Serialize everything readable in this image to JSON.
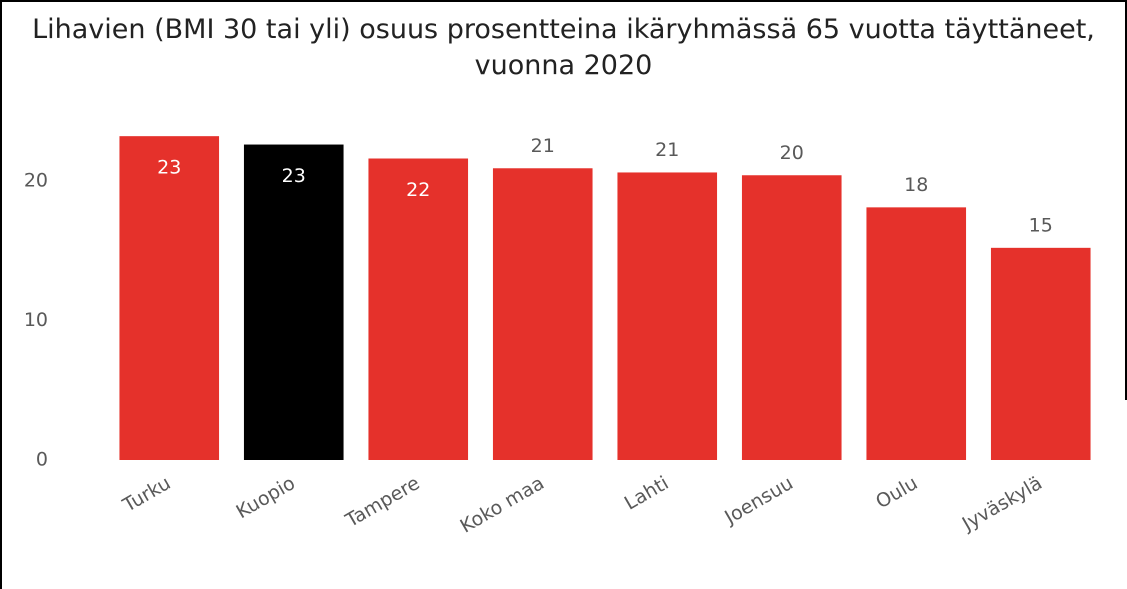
{
  "chart_data": {
    "type": "bar",
    "title": "Lihavien (BMI 30 tai yli) osuus prosentteina ikäryhmässä 65 vuotta täyttäneet, vuonna 2020",
    "categories": [
      "Turku",
      "Kuopio",
      "Tampere",
      "Koko maa",
      "Lahti",
      "Joensuu",
      "Oulu",
      "Jyväskylä"
    ],
    "values": [
      23.2,
      22.6,
      21.6,
      20.9,
      20.6,
      20.4,
      18.1,
      15.2
    ],
    "value_labels": [
      "23",
      "23",
      "22",
      "21",
      "21",
      "20",
      "18",
      "15"
    ],
    "colors": [
      "#e5312b",
      "#000000",
      "#e5312b",
      "#e5312b",
      "#e5312b",
      "#e5312b",
      "#e5312b",
      "#e5312b"
    ],
    "ylim": [
      0,
      24
    ],
    "yticks": [
      0,
      10,
      20
    ],
    "grid": false
  }
}
